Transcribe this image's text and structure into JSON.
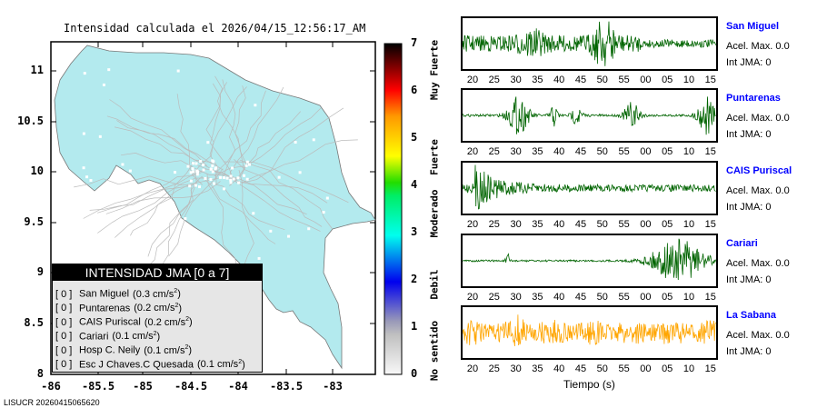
{
  "title": "Intensidad calculada el 2026/04/15_12:56:17_AM",
  "footer": "LISUCR 20260415065620",
  "map": {
    "lon_ticks": [
      "-86",
      "-85.5",
      "-85",
      "-84.5",
      "-84",
      "-83.5",
      "-83"
    ],
    "lat_ticks": [
      "11",
      "10.5",
      "10",
      "9.5",
      "9",
      "8.5",
      "8"
    ],
    "land_color": "#b3eaee"
  },
  "colorbar": {
    "ticks": [
      "0",
      "1",
      "2",
      "3",
      "4",
      "5",
      "6",
      "7"
    ],
    "labels": [
      "No sentido",
      "Debil",
      "Moderado",
      "Fuerte",
      "Muy Fuerte"
    ]
  },
  "legend": {
    "title": "INTENSIDAD JMA [0 a 7]",
    "rows": [
      {
        "int": "[ 0 ]",
        "name": "San Miguel",
        "acc": "(0.3 cm/s",
        "sup": "2",
        ")": ")"
      },
      {
        "int": "[ 0 ]",
        "name": "Puntarenas",
        "acc": "(0.2 cm/s",
        "sup": "2"
      },
      {
        "int": "[ 0 ]",
        "name": "CAIS Puriscal",
        "acc": "(0.2 cm/s",
        "sup": "2"
      },
      {
        "int": "[ 0 ]",
        "name": "Cariari",
        "acc": "(0.1 cm/s",
        "sup": "2"
      },
      {
        "int": "[ 0 ]",
        "name": "Hosp C. Neily",
        "acc": "(0.1 cm/s",
        "sup": "2"
      },
      {
        "int": "[ 0 ]",
        "name": "Esc J Chaves.C Quesada",
        "acc": "(0.1 cm/s",
        "sup": "2"
      }
    ]
  },
  "time_ticks": [
    "20",
    "25",
    "30",
    "35",
    "40",
    "45",
    "50",
    "55",
    "00",
    "05",
    "10",
    "15"
  ],
  "xlabel": "Tiempo (s)",
  "stations": [
    {
      "name": "San Miguel",
      "acel": "Acel. Max. 0.0",
      "int": "Int JMA: 0",
      "color": "#006400"
    },
    {
      "name": "Puntarenas",
      "acel": "Acel. Max. 0.0",
      "int": "Int JMA: 0",
      "color": "#006400"
    },
    {
      "name": "CAIS Puriscal",
      "acel": "Acel. Max. 0.0",
      "int": "Int JMA: 0",
      "color": "#006400"
    },
    {
      "name": "Cariari",
      "acel": "Acel. Max. 0.0",
      "int": "Int JMA: 0",
      "color": "#006400"
    },
    {
      "name": "La Sabana",
      "acel": "Acel. Max. 0.0",
      "int": "Int JMA: 0",
      "color": "#ffa500"
    }
  ]
}
